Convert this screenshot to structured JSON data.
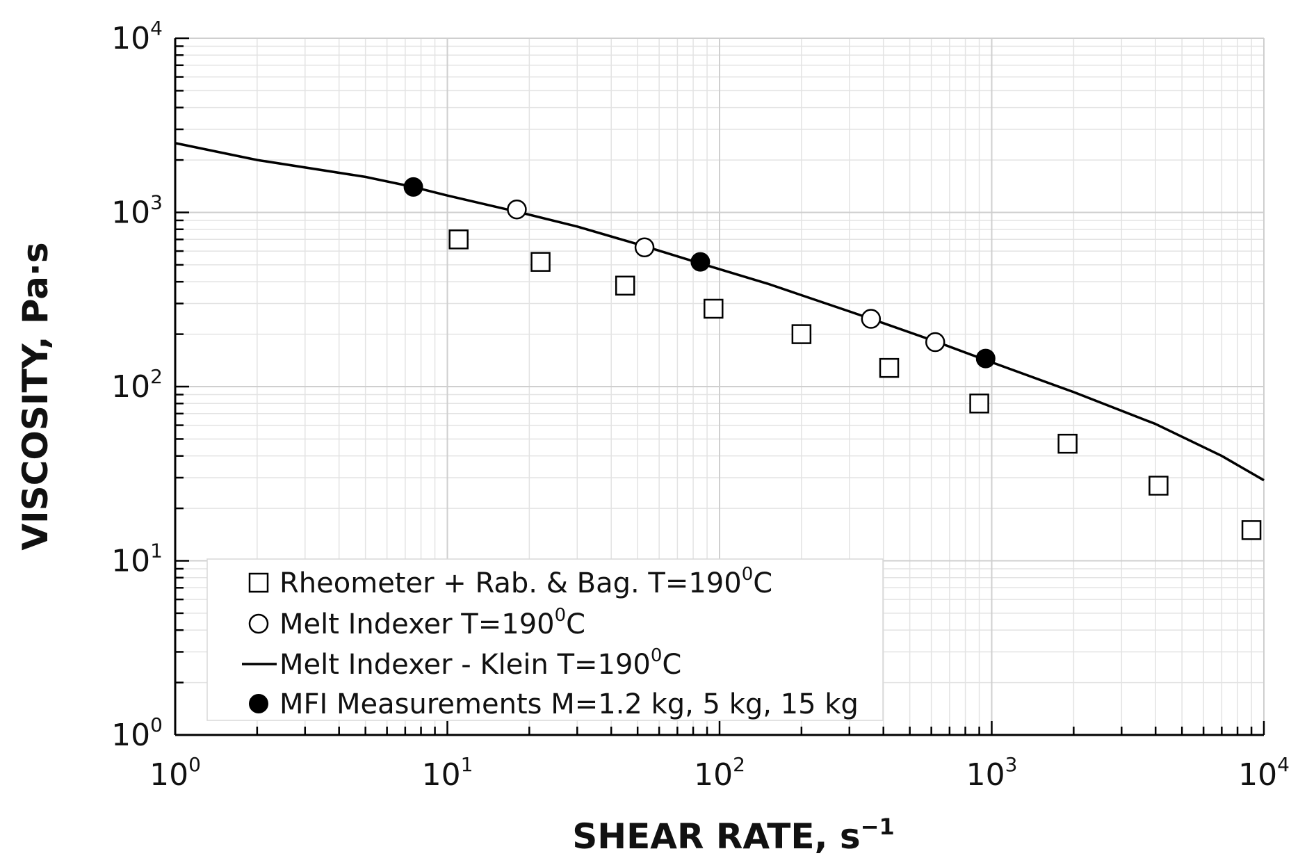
{
  "chart_data": {
    "type": "scatter",
    "xscale": "log",
    "yscale": "log",
    "xlim": [
      1,
      10000
    ],
    "ylim": [
      1,
      10000
    ],
    "grid": true,
    "xlabel": {
      "main": "SHEAR RATE, s",
      "sup": "−1"
    },
    "ylabel": "VISCOSITY, Pa·s",
    "x_ticks": [
      {
        "base": "10",
        "exp": "0"
      },
      {
        "base": "10",
        "exp": "1"
      },
      {
        "base": "10",
        "exp": "2"
      },
      {
        "base": "10",
        "exp": "3"
      },
      {
        "base": "10",
        "exp": "4"
      }
    ],
    "y_ticks": [
      {
        "base": "10",
        "exp": "0"
      },
      {
        "base": "10",
        "exp": "1"
      },
      {
        "base": "10",
        "exp": "2"
      },
      {
        "base": "10",
        "exp": "3"
      },
      {
        "base": "10",
        "exp": "4"
      }
    ],
    "legend_position": "bottom-left",
    "series": [
      {
        "name": "rheometer",
        "legend": {
          "pre": "Rheometer + Rab. & Bag. T=190",
          "sup": "0",
          "post": "C"
        },
        "marker": "square-open",
        "x": [
          11,
          22,
          45,
          95,
          200,
          420,
          900,
          1900,
          4100,
          9000
        ],
        "y": [
          700,
          520,
          380,
          280,
          200,
          128,
          80,
          47,
          27,
          15
        ]
      },
      {
        "name": "melt-indexer",
        "legend": {
          "pre": "Melt Indexer T=190",
          "sup": "0",
          "post": "C"
        },
        "marker": "circle-open",
        "x": [
          18,
          53,
          360,
          620
        ],
        "y": [
          1040,
          630,
          245,
          180
        ]
      },
      {
        "name": "klein-model",
        "legend": {
          "pre": "Melt Indexer - Klein T=190",
          "sup": "0",
          "post": "C"
        },
        "marker": "line",
        "x": [
          1,
          2,
          5,
          7.5,
          10,
          18,
          30,
          53,
          85,
          150,
          300,
          360,
          620,
          950,
          2000,
          4000,
          7000,
          10000
        ],
        "y": [
          2500,
          2000,
          1600,
          1400,
          1250,
          1010,
          830,
          640,
          510,
          390,
          270,
          245,
          182,
          142,
          93,
          61,
          40,
          29
        ]
      },
      {
        "name": "mfi-measurements",
        "legend": {
          "pre": "MFI Measurements M=1.2 kg, 5 kg, 15 kg",
          "sup": "",
          "post": ""
        },
        "marker": "circle-filled",
        "x": [
          7.5,
          85,
          950
        ],
        "y": [
          1400,
          520,
          145
        ]
      }
    ]
  }
}
